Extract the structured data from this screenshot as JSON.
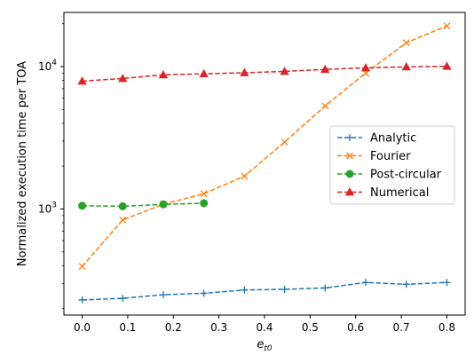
{
  "chart_data": {
    "type": "line",
    "xlabel": "e",
    "xlabel_sub": "t0",
    "ylabel": "Normalized execution time per TOA",
    "xlim": [
      -0.04,
      0.84
    ],
    "ylim": [
      180,
      24000
    ],
    "yscale": "log",
    "grid": false,
    "legend": "center-right",
    "x_ticks": [
      0.0,
      0.1,
      0.2,
      0.3,
      0.4,
      0.5,
      0.6,
      0.7,
      0.8
    ],
    "x_tick_labels": [
      "0.0",
      "0.1",
      "0.2",
      "0.3",
      "0.4",
      "0.5",
      "0.6",
      "0.7",
      "0.8"
    ],
    "y_major_ticks": [
      1000,
      10000
    ],
    "y_tick_labels": [
      {
        "base": "10",
        "exp": "3"
      },
      {
        "base": "10",
        "exp": "4"
      }
    ],
    "series": [
      {
        "name": "Analytic",
        "color": "#1f77b4",
        "marker": "plus",
        "x": [
          0.0,
          0.089,
          0.178,
          0.267,
          0.356,
          0.444,
          0.533,
          0.622,
          0.711,
          0.8
        ],
        "values": [
          230,
          236,
          250,
          256,
          270,
          273,
          279,
          305,
          296,
          305
        ]
      },
      {
        "name": "Fourier",
        "color": "#ff7f0e",
        "marker": "x",
        "x": [
          0.0,
          0.089,
          0.178,
          0.267,
          0.356,
          0.444,
          0.533,
          0.622,
          0.711,
          0.8
        ],
        "values": [
          395,
          838,
          1080,
          1280,
          1700,
          2950,
          5300,
          9000,
          14700,
          19300
        ]
      },
      {
        "name": "Post-circular",
        "color": "#2ca02c",
        "marker": "circle",
        "x": [
          0.0,
          0.089,
          0.178,
          0.267
        ],
        "values": [
          1055,
          1045,
          1078,
          1098
        ]
      },
      {
        "name": "Numerical",
        "color": "#d62728",
        "marker": "triangle",
        "x": [
          0.0,
          0.089,
          0.178,
          0.267,
          0.356,
          0.444,
          0.533,
          0.622,
          0.711,
          0.8
        ],
        "values": [
          7900,
          8250,
          8750,
          8900,
          9050,
          9250,
          9550,
          9800,
          9950,
          10050
        ]
      }
    ]
  }
}
